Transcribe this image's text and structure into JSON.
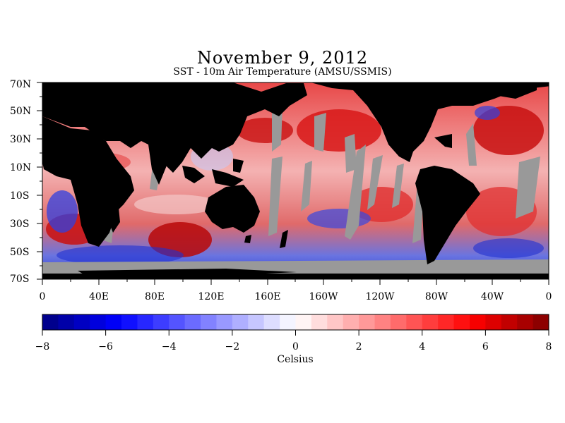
{
  "title": "November 9, 2012",
  "subtitle": "SST - 10m Air Temperature (AMSU/SSMIS)",
  "map": {
    "lat_labels": [
      "70N",
      "50N",
      "30N",
      "10N",
      "10S",
      "30S",
      "50S",
      "70S"
    ],
    "lon_labels": [
      "0",
      "40E",
      "80E",
      "120E",
      "160E",
      "160W",
      "120W",
      "80W",
      "40W",
      "0"
    ],
    "colors": {
      "land": "#000000",
      "missing": "#999999",
      "neutral": "#ffffff"
    }
  },
  "colorbar": {
    "min": -8,
    "max": 8,
    "step": 0.5,
    "tick_labels": [
      "-8",
      "-6",
      "-4",
      "-2",
      "0",
      "2",
      "4",
      "6",
      "8"
    ],
    "label": "Celsius",
    "cold_color": "#000080",
    "warm_color": "#800000"
  }
}
